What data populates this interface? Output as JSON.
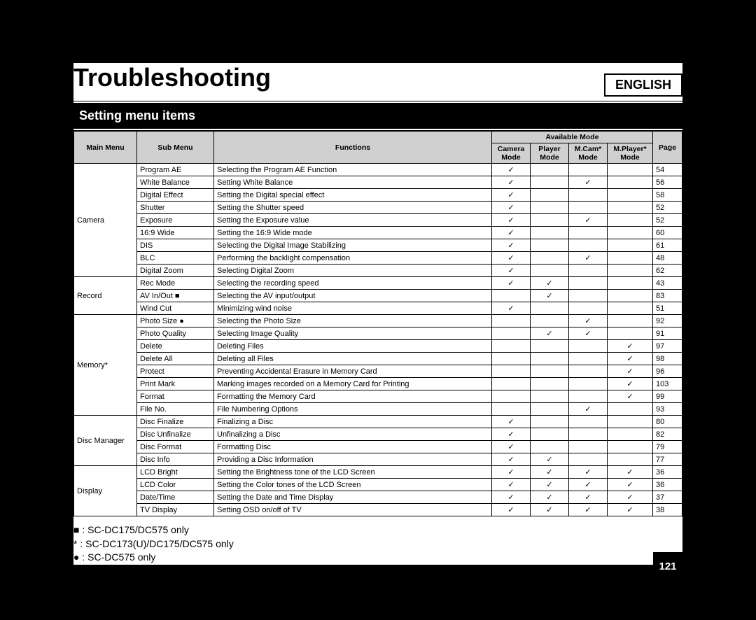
{
  "language": "ENGLISH",
  "title": "Troubleshooting",
  "section": "Setting menu items",
  "headers": {
    "main_menu": "Main Menu",
    "sub_menu": "Sub Menu",
    "functions": "Functions",
    "available_mode": "Available Mode",
    "camera_mode": "Camera Mode",
    "player_mode": "Player Mode",
    "mcam_mode": "M.Cam* Mode",
    "mplayer_mode": "M.Player* Mode",
    "page": "Page"
  },
  "check": "✓",
  "groups": [
    {
      "main": "Camera",
      "rows": [
        {
          "sub": "Program AE",
          "func": "Selecting the Program AE Function",
          "m": [
            1,
            0,
            0,
            0
          ],
          "p": "54"
        },
        {
          "sub": "White Balance",
          "func": "Setting White Balance",
          "m": [
            1,
            0,
            1,
            0
          ],
          "p": "56"
        },
        {
          "sub": "Digital Effect",
          "func": "Setting the Digital special effect",
          "m": [
            1,
            0,
            0,
            0
          ],
          "p": "58"
        },
        {
          "sub": "Shutter",
          "func": "Setting the Shutter speed",
          "m": [
            1,
            0,
            0,
            0
          ],
          "p": "52"
        },
        {
          "sub": "Exposure",
          "func": "Setting the Exposure value",
          "m": [
            1,
            0,
            1,
            0
          ],
          "p": "52"
        },
        {
          "sub": "16:9 Wide",
          "func": "Setting the 16:9 Wide mode",
          "m": [
            1,
            0,
            0,
            0
          ],
          "p": "60"
        },
        {
          "sub": "DIS",
          "func": "Selecting the Digital Image Stabilizing",
          "m": [
            1,
            0,
            0,
            0
          ],
          "p": "61"
        },
        {
          "sub": "BLC",
          "func": "Performing the backlight compensation",
          "m": [
            1,
            0,
            1,
            0
          ],
          "p": "48"
        },
        {
          "sub": "Digital Zoom",
          "func": "Selecting Digital Zoom",
          "m": [
            1,
            0,
            0,
            0
          ],
          "p": "62"
        }
      ]
    },
    {
      "main": "Record",
      "rows": [
        {
          "sub": "Rec Mode",
          "func": "Selecting the recording speed",
          "m": [
            1,
            1,
            0,
            0
          ],
          "p": "43"
        },
        {
          "sub": "AV In/Out ■",
          "func": "Selecting the AV input/output",
          "m": [
            0,
            1,
            0,
            0
          ],
          "p": "83"
        },
        {
          "sub": "Wind Cut",
          "func": "Minimizing wind noise",
          "m": [
            1,
            0,
            0,
            0
          ],
          "p": "51"
        }
      ]
    },
    {
      "main": "Memory*",
      "rows": [
        {
          "sub": "Photo Size ●",
          "func": "Selecting the Photo Size",
          "m": [
            0,
            0,
            1,
            0
          ],
          "p": "92"
        },
        {
          "sub": "Photo Quality",
          "func": "Selecting Image Quality",
          "m": [
            0,
            1,
            1,
            0
          ],
          "p": "91"
        },
        {
          "sub": "Delete",
          "func": "Deleting Files",
          "m": [
            0,
            0,
            0,
            1
          ],
          "p": "97"
        },
        {
          "sub": "Delete All",
          "func": "Deleting all Files",
          "m": [
            0,
            0,
            0,
            1
          ],
          "p": "98"
        },
        {
          "sub": "Protect",
          "func": "Preventing Accidental Erasure in Memory Card",
          "m": [
            0,
            0,
            0,
            1
          ],
          "p": "96"
        },
        {
          "sub": "Print Mark",
          "func": "Marking images recorded on a Memory Card for Printing",
          "m": [
            0,
            0,
            0,
            1
          ],
          "p": "103"
        },
        {
          "sub": "Format",
          "func": "Formatting the Memory Card",
          "m": [
            0,
            0,
            0,
            1
          ],
          "p": "99"
        },
        {
          "sub": "File No.",
          "func": "File Numbering Options",
          "m": [
            0,
            0,
            1,
            0
          ],
          "p": "93"
        }
      ]
    },
    {
      "main": "Disc Manager",
      "rows": [
        {
          "sub": "Disc Finalize",
          "func": "Finalizing a Disc",
          "m": [
            1,
            0,
            0,
            0
          ],
          "p": "80"
        },
        {
          "sub": "Disc Unfinalize",
          "func": "Unfinalizing a Disc",
          "m": [
            1,
            0,
            0,
            0
          ],
          "p": "82"
        },
        {
          "sub": "Disc Format",
          "func": "Formatting Disc",
          "m": [
            1,
            0,
            0,
            0
          ],
          "p": "79"
        },
        {
          "sub": "Disc Info",
          "func": "Providing a Disc Information",
          "m": [
            1,
            1,
            0,
            0
          ],
          "p": "77"
        }
      ]
    },
    {
      "main": "Display",
      "rows": [
        {
          "sub": "LCD Bright",
          "func": "Setting the Brightness tone of the LCD Screen",
          "m": [
            1,
            1,
            1,
            1
          ],
          "p": "36"
        },
        {
          "sub": "LCD Color",
          "func": "Setting the Color tones of the LCD Screen",
          "m": [
            1,
            1,
            1,
            1
          ],
          "p": "36"
        },
        {
          "sub": "Date/Time",
          "func": "Setting the Date and Time Display",
          "m": [
            1,
            1,
            1,
            1
          ],
          "p": "37"
        },
        {
          "sub": "TV Display",
          "func": "Setting OSD on/off of TV",
          "m": [
            1,
            1,
            1,
            1
          ],
          "p": "38"
        }
      ]
    }
  ],
  "footnotes": [
    "■ : SC-DC175/DC575 only",
    "*  : SC-DC173(U)/DC175/DC575 only",
    "● : SC-DC575 only"
  ],
  "page_number": "121"
}
